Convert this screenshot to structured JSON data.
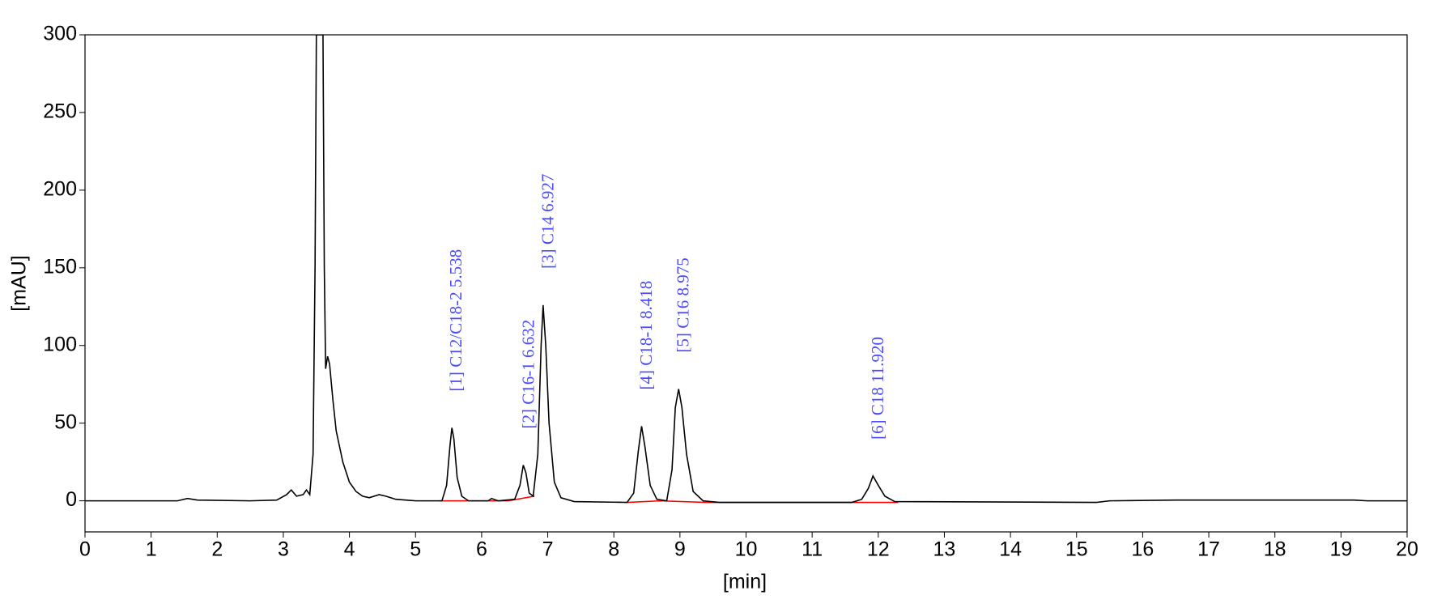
{
  "chart_data": {
    "type": "line",
    "xlabel": "[min]",
    "ylabel": "[mAU]",
    "xlim": [
      0,
      20
    ],
    "ylim": [
      -20,
      300
    ],
    "xticks": [
      0,
      1,
      2,
      3,
      4,
      5,
      6,
      7,
      8,
      9,
      10,
      11,
      12,
      13,
      14,
      15,
      16,
      17,
      18,
      19,
      20
    ],
    "yticks": [
      0,
      50,
      100,
      150,
      200,
      250,
      300
    ],
    "series": [
      {
        "color": "#000000",
        "x": [
          0,
          1.4,
          1.55,
          1.7,
          2.5,
          2.9,
          3.05,
          3.12,
          3.2,
          3.3,
          3.35,
          3.4,
          3.45,
          3.48,
          3.5,
          3.6,
          3.62,
          3.64,
          3.67,
          3.7,
          3.75,
          3.8,
          3.9,
          4.0,
          4.1,
          4.2,
          4.3,
          4.45,
          4.55,
          4.7,
          5.0,
          5.4,
          5.47,
          5.52,
          5.55,
          5.58,
          5.63,
          5.7,
          5.8,
          6.1,
          6.15,
          6.25,
          6.5,
          6.58,
          6.63,
          6.67,
          6.72,
          6.78,
          6.85,
          6.9,
          6.93,
          6.97,
          7.02,
          7.1,
          7.2,
          7.4,
          8.2,
          8.3,
          8.37,
          8.42,
          8.47,
          8.55,
          8.65,
          8.8,
          8.88,
          8.93,
          8.98,
          9.03,
          9.1,
          9.2,
          9.35,
          9.6,
          11.6,
          11.75,
          11.85,
          11.92,
          12.0,
          12.1,
          12.25,
          15.3,
          15.5,
          16.5,
          19.2,
          19.4,
          20
        ],
        "values": [
          0,
          0,
          1.5,
          0.5,
          0,
          0.5,
          4,
          7,
          3,
          4,
          7,
          4,
          30,
          150,
          300,
          300,
          150,
          85,
          93,
          88,
          65,
          45,
          25,
          12,
          6,
          3,
          2,
          4,
          3,
          1,
          0,
          0,
          10,
          35,
          47,
          40,
          15,
          3,
          0,
          0,
          1.5,
          0,
          1,
          10,
          23,
          18,
          5,
          3,
          30,
          100,
          126,
          100,
          50,
          12,
          2,
          -0.5,
          -1,
          5,
          32,
          48,
          35,
          10,
          1,
          0,
          20,
          60,
          72,
          60,
          30,
          6,
          0,
          -1,
          -1,
          1,
          8,
          16,
          10,
          3,
          -0.5,
          -1,
          0,
          0.5,
          0.5,
          0,
          0
        ]
      },
      {
        "color": "#ff0000",
        "x": [
          5.35,
          5.8,
          6.4,
          6.8,
          7.3,
          8.2,
          8.7,
          9.4,
          11.6,
          12.3
        ],
        "values": [
          0,
          0,
          0,
          3,
          null,
          -1,
          0,
          -1,
          -1,
          -1
        ]
      }
    ],
    "annotations": [
      {
        "text": "[1] C12/C18-2 5.538",
        "x": 5.538
      },
      {
        "text": "[2] C16-1 6.632",
        "x": 6.632
      },
      {
        "text": "[3] C14 6.927",
        "x": 6.927
      },
      {
        "text": "[4] C18-1 8.418",
        "x": 8.418
      },
      {
        "text": "[5] C16 8.975",
        "x": 8.975
      },
      {
        "text": "[6] C18 11.920",
        "x": 11.92
      }
    ]
  }
}
